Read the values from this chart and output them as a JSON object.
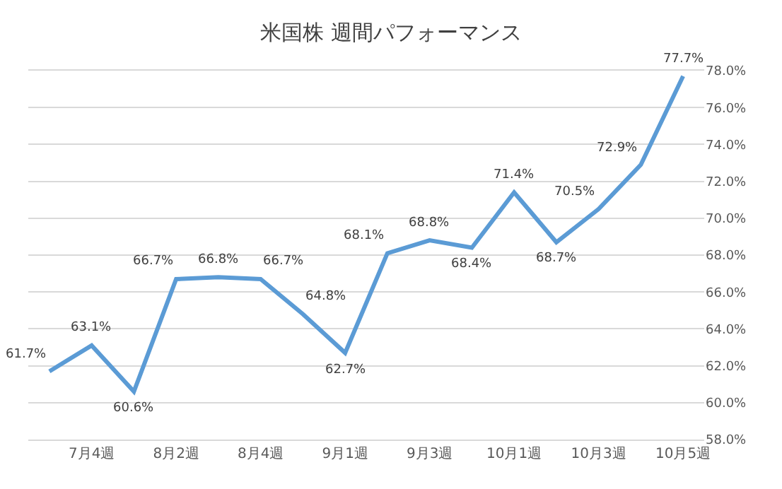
{
  "chart_data": {
    "type": "line",
    "title": "米国株 週間パフォーマンス",
    "categories": [
      null,
      "7月4週",
      null,
      "8月2週",
      null,
      "8月4週",
      null,
      "9月1週",
      null,
      "9月3週",
      null,
      "10月1週",
      null,
      "10月3週",
      null,
      "10月5週"
    ],
    "series": [
      {
        "color": "#5b9bd5",
        "values": [
          61.7,
          63.1,
          60.6,
          66.7,
          66.8,
          66.7,
          64.8,
          62.7,
          68.1,
          68.8,
          68.4,
          71.4,
          68.7,
          70.5,
          72.9,
          77.7
        ],
        "value_labels": [
          "61.7%",
          "63.1%",
          "60.6%",
          "66.7%",
          "66.8%",
          "66.7%",
          "64.8%",
          "62.7%",
          "68.1%",
          "68.8%",
          "68.4%",
          "71.4%",
          "68.7%",
          "70.5%",
          "72.9%",
          "77.7%"
        ]
      }
    ],
    "ylim": [
      58,
      78
    ],
    "yticks": [
      {
        "value": 58,
        "label": "58.0%"
      },
      {
        "value": 60,
        "label": "60.0%"
      },
      {
        "value": 62,
        "label": "62.0%"
      },
      {
        "value": 64,
        "label": "64.0%"
      },
      {
        "value": 66,
        "label": "66.0%"
      },
      {
        "value": 68,
        "label": "68.0%"
      },
      {
        "value": 70,
        "label": "70.0%"
      },
      {
        "value": 72,
        "label": "72.0%"
      },
      {
        "value": 74,
        "label": "74.0%"
      },
      {
        "value": 76,
        "label": "76.0%"
      },
      {
        "value": 78,
        "label": "78.0%"
      }
    ],
    "grid": "y",
    "legend": false,
    "marker": "none",
    "line_style": "solid"
  }
}
